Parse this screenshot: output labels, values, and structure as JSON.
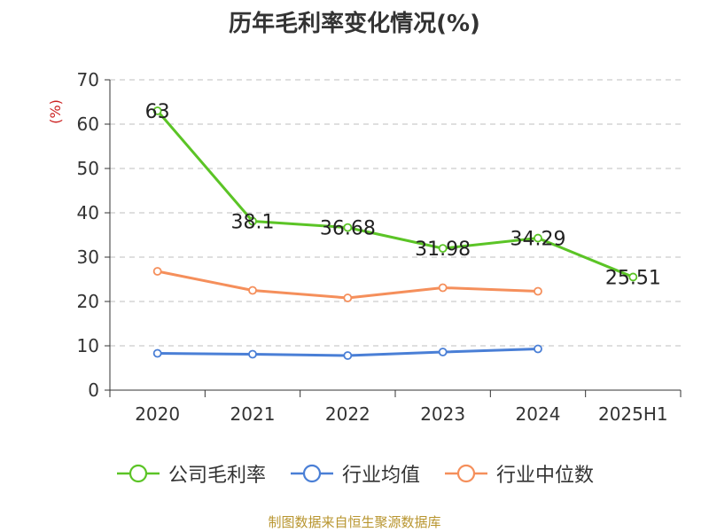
{
  "chart_data": {
    "type": "line",
    "title": "历年毛利率变化情况(%)",
    "ylabel": "(%)",
    "xlabel": "",
    "categories": [
      "2020",
      "2021",
      "2022",
      "2023",
      "2024",
      "2025H1"
    ],
    "ylim": [
      0,
      70
    ],
    "yticks": [
      0,
      10,
      20,
      30,
      40,
      50,
      60,
      70
    ],
    "grid": "horizontal-dashed",
    "legend_position": "bottom",
    "series": [
      {
        "name": "公司毛利率",
        "color": "#5bc426",
        "labeled": true,
        "labels": [
          "63",
          "38.1",
          "36.68",
          "31.98",
          "34.29",
          "25.51"
        ],
        "values": [
          63,
          38.1,
          36.68,
          31.98,
          34.29,
          25.51
        ]
      },
      {
        "name": "行业均值",
        "color": "#4a7fd6",
        "labeled": false,
        "values": [
          8.3,
          8.1,
          7.8,
          8.6,
          9.3,
          null
        ]
      },
      {
        "name": "行业中位数",
        "color": "#f58f5b",
        "labeled": false,
        "values": [
          26.8,
          22.5,
          20.8,
          23.1,
          22.3,
          null
        ]
      }
    ]
  },
  "source_note": "制图数据来自恒生聚源数据库",
  "colors": {
    "ylabel": "#cc2222",
    "axis": "#333333",
    "grid": "#cccccc",
    "source": "#b8952f"
  }
}
